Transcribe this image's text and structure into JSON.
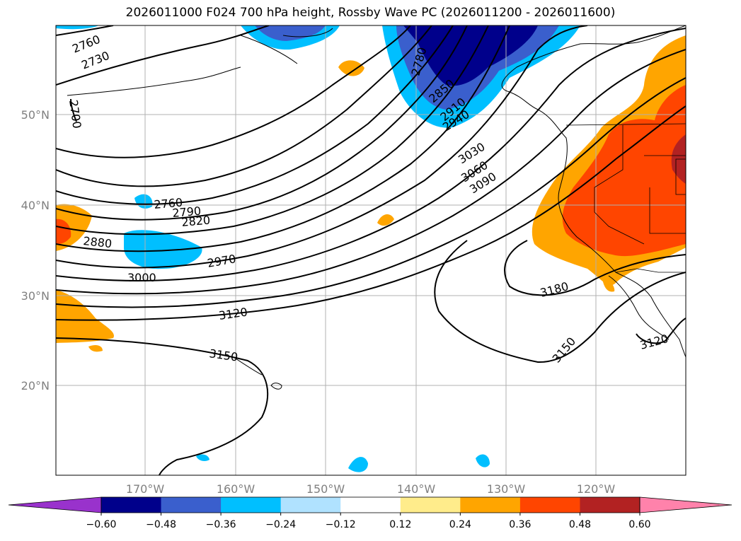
{
  "title": "2026011000 F024 700 hPa height, Rossby Wave PC (2026011200 - 2026011600)",
  "lat_labels": [
    "50°N",
    "40°N",
    "30°N",
    "20°N"
  ],
  "lon_labels": [
    "170°W",
    "160°W",
    "150°W",
    "140°W",
    "130°W",
    "120°W"
  ],
  "colorbar": {
    "ticks": [
      "−0.60",
      "−0.48",
      "−0.36",
      "−0.24",
      "−0.12",
      "0.12",
      "0.24",
      "0.36",
      "0.48",
      "0.60"
    ],
    "colors": [
      "#9932cc",
      "#00008b",
      "#3a5fcd",
      "#00bfff",
      "#b0e2ff",
      "#ffffff",
      "#ffec8b",
      "#ffa500",
      "#ff4500",
      "#b22222",
      "#ff82ab"
    ]
  },
  "contour_labels": [
    "2760",
    "2730",
    "2700",
    "2780",
    "2850",
    "2910",
    "2940",
    "3030",
    "3060",
    "3090",
    "2760",
    "2790",
    "2820",
    "2880",
    "2970",
    "3000",
    "3120",
    "3150",
    "3180",
    "3150",
    "3120"
  ],
  "colors": {
    "grid": "#b0b0b0",
    "axis_text": "#808080"
  }
}
